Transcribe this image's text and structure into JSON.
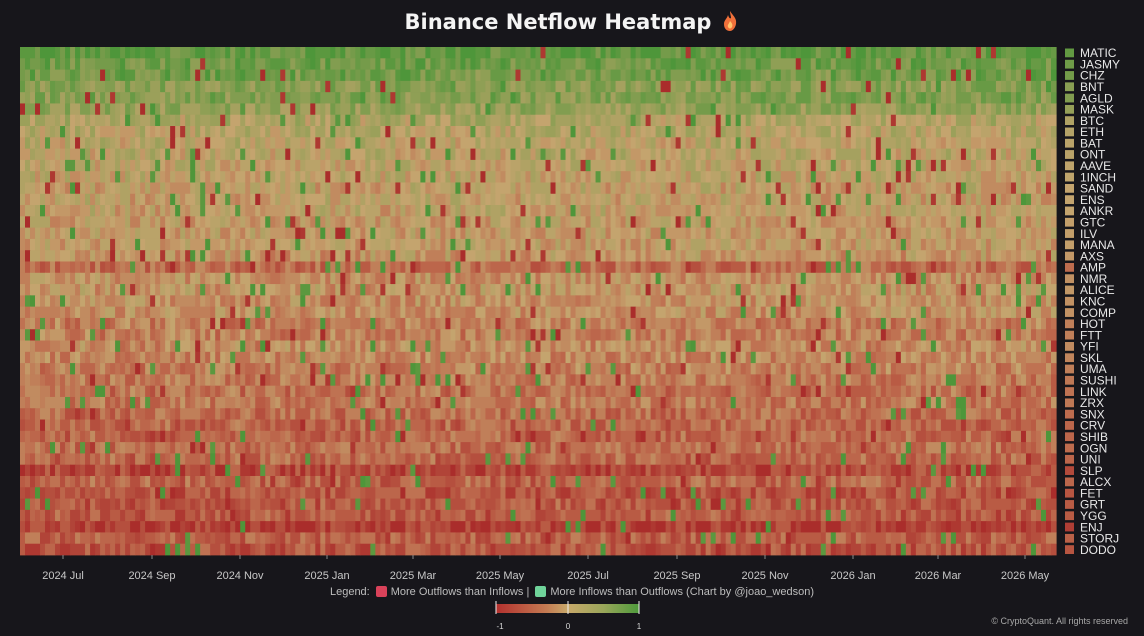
{
  "title": "Binance Netflow Heatmap",
  "title_icon": "flame-icon",
  "legend": {
    "prefix": "Legend:",
    "outflow_label": "More Outflows than Inflows",
    "separator": "|",
    "inflow_label": "More Inflows than Outflows (Chart by @joao_wedson)",
    "outflow_color": "#d9425a",
    "inflow_color": "#6fd39a"
  },
  "copyright": "© CryptoQuant. All rights reserved",
  "colorbar": {
    "min_label": "-1",
    "mid_label": "0",
    "max_label": "1"
  },
  "chart_data": {
    "type": "heatmap",
    "title": "Binance Netflow Heatmap",
    "value_range": [
      -1,
      1
    ],
    "colorscale": [
      "#b3302e",
      "#c47a52",
      "#bfa46c",
      "#5e9a3e"
    ],
    "x_tick_labels": [
      "2024 Jul",
      "2024 Sep",
      "2024 Nov",
      "2025 Jan",
      "2025 Mar",
      "2025 May",
      "2025 Jul",
      "2025 Sep",
      "2025 Nov",
      "2026 Jan",
      "2026 Mar",
      "2026 May"
    ],
    "rows": [
      "MATIC",
      "JASMY",
      "CHZ",
      "BNT",
      "AGLD",
      "MASK",
      "BTC",
      "ETH",
      "BAT",
      "ONT",
      "AAVE",
      "1INCH",
      "SAND",
      "ENS",
      "ANKR",
      "GTC",
      "ILV",
      "MANA",
      "AXS",
      "AMP",
      "NMR",
      "ALICE",
      "KNC",
      "COMP",
      "HOT",
      "FTT",
      "YFI",
      "SKL",
      "UMA",
      "SUSHI",
      "LINK",
      "ZRX",
      "SNX",
      "CRV",
      "SHIB",
      "OGN",
      "UNI",
      "SLP",
      "ALCX",
      "FET",
      "GRT",
      "YGG",
      "ENJ",
      "STORJ",
      "DODO"
    ],
    "row_mean_netflow": [
      0.85,
      0.75,
      0.72,
      0.55,
      0.6,
      0.45,
      0.2,
      0.15,
      0.1,
      0.1,
      0.05,
      0.05,
      0.0,
      0.0,
      0.0,
      -0.05,
      -0.05,
      -0.05,
      -0.1,
      -0.45,
      -0.15,
      -0.1,
      -0.15,
      -0.15,
      -0.3,
      -0.3,
      -0.2,
      -0.25,
      -0.3,
      -0.35,
      -0.4,
      -0.35,
      -0.45,
      -0.5,
      -0.5,
      -0.45,
      -0.5,
      -0.75,
      -0.5,
      -0.65,
      -0.6,
      -0.6,
      -0.85,
      -0.55,
      -0.65
    ]
  }
}
